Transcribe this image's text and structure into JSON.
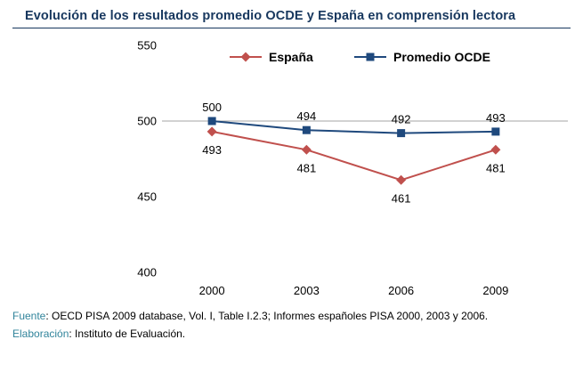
{
  "title": "Evolución de los resultados promedio OCDE y España en comprensión lectora",
  "footer": {
    "fuente_label": "Fuente",
    "fuente_text": ": OECD PISA 2009 database, Vol. I,  Table I.2.3; Informes españoles PISA 2000, 2003 y 2006.",
    "elaboracion_label": "Elaboración",
    "elaboracion_text": ": Instituto de Evaluación."
  },
  "colors": {
    "espana": "#C0504D",
    "ocde": "#1F497D",
    "title": "#17375E",
    "footer_accent": "#31849B",
    "gridline": "#A6A6A6",
    "text": "#000000"
  },
  "chart_data": {
    "type": "line",
    "categories": [
      "2000",
      "2003",
      "2006",
      "2009"
    ],
    "series": [
      {
        "name": "España",
        "values": [
          493,
          481,
          461,
          481
        ],
        "color_key": "espana",
        "marker": "diamond",
        "label_position": "below"
      },
      {
        "name": "Promedio OCDE",
        "values": [
          500,
          494,
          492,
          493
        ],
        "color_key": "ocde",
        "marker": "square",
        "label_position": "above"
      }
    ],
    "yticks": [
      400,
      450,
      500,
      550
    ],
    "ylim": [
      400,
      550
    ],
    "gridlines": [
      500
    ],
    "legend_position": "top",
    "xlabel": "",
    "ylabel": ""
  }
}
